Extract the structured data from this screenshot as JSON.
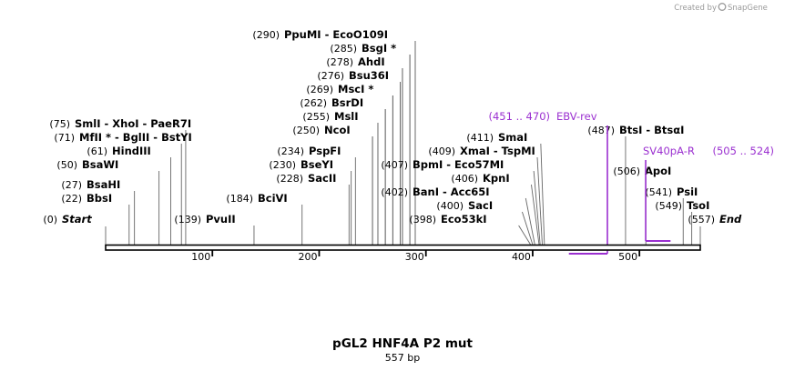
{
  "credit": {
    "text": "Created by",
    "brand": "SnapGene"
  },
  "map": {
    "title": "pGL2 HNF4A P2 mut",
    "length_label": "557 bp",
    "length": 557,
    "axis_ticks": [
      "100",
      "200",
      "300",
      "400",
      "500"
    ],
    "sites": [
      {
        "name": "Start",
        "pos": "(0)",
        "bp": 0,
        "italic": true
      },
      {
        "name": "BbsI",
        "pos": "(22)",
        "bp": 22
      },
      {
        "name": "BsaHI",
        "pos": "(27)",
        "bp": 27
      },
      {
        "name": "BsaWI",
        "pos": "(50)",
        "bp": 50
      },
      {
        "name": "HindIII",
        "pos": "(61)",
        "bp": 61
      },
      {
        "name": "MfII * - BglII - BstYI",
        "pos": "(71)",
        "bp": 71
      },
      {
        "name": "SmlI - XhoI - PaeR7I",
        "pos": "(75)",
        "bp": 75
      },
      {
        "name": "PvuII",
        "pos": "(139)",
        "bp": 139
      },
      {
        "name": "BciVI",
        "pos": "(184)",
        "bp": 184
      },
      {
        "name": "SacII",
        "pos": "(228)",
        "bp": 228
      },
      {
        "name": "BseYI",
        "pos": "(230)",
        "bp": 230
      },
      {
        "name": "PspFI",
        "pos": "(234)",
        "bp": 234
      },
      {
        "name": "NcoI",
        "pos": "(250)",
        "bp": 250
      },
      {
        "name": "MslI",
        "pos": "(255)",
        "bp": 255
      },
      {
        "name": "BsrDI",
        "pos": "(262)",
        "bp": 262
      },
      {
        "name": "MscI *",
        "pos": "(269)",
        "bp": 269
      },
      {
        "name": "Bsu36I",
        "pos": "(276)",
        "bp": 276
      },
      {
        "name": "AhdI",
        "pos": "(278)",
        "bp": 278
      },
      {
        "name": "BsgI *",
        "pos": "(285)",
        "bp": 285
      },
      {
        "name": "PpuMI - EcoO109I",
        "pos": "(290)",
        "bp": 290
      },
      {
        "name": "Eco53kI",
        "pos": "(398)",
        "bp": 398
      },
      {
        "name": "SacI",
        "pos": "(400)",
        "bp": 400
      },
      {
        "name": "BanI - Acc65I",
        "pos": "(402)",
        "bp": 402
      },
      {
        "name": "KpnI",
        "pos": "(406)",
        "bp": 406
      },
      {
        "name": "BpmI - Eco57MI",
        "pos": "(407)",
        "bp": 407
      },
      {
        "name": "XmaI - TspMI",
        "pos": "(409)",
        "bp": 409
      },
      {
        "name": "SmaI",
        "pos": "(411)",
        "bp": 411
      },
      {
        "name": "BtsI - BtsαI",
        "pos": "(487)",
        "bp": 487
      },
      {
        "name": "ApoI",
        "pos": "(506)",
        "bp": 506
      },
      {
        "name": "PsiI",
        "pos": "(541)",
        "bp": 541
      },
      {
        "name": "TsoI",
        "pos": "(549)",
        "bp": 549
      },
      {
        "name": "End",
        "pos": "(557)",
        "bp": 557,
        "italic": true
      }
    ],
    "primers": [
      {
        "name": "EBV-rev",
        "range": "(451 .. 470)",
        "start": 451,
        "end": 470,
        "color": "#9b30d0"
      },
      {
        "name": "SV40pA-R",
        "range": "(505 .. 524)",
        "start": 505,
        "end": 524,
        "color": "#9b30d0"
      }
    ]
  }
}
